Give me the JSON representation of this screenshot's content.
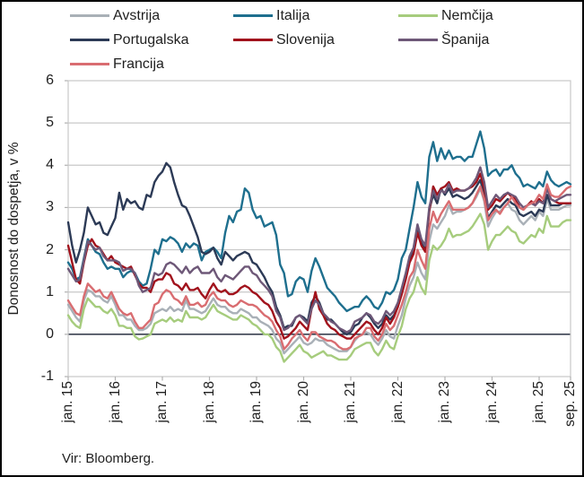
{
  "figure": {
    "source_label": "Vir: Bloomberg."
  },
  "chart_data": {
    "type": "line",
    "title": "",
    "ylabel": "Donosnost do dospetja, v %",
    "xlabel": "",
    "ylim": [
      -1,
      6
    ],
    "y_ticks": [
      6,
      5,
      4,
      3,
      2,
      1,
      0,
      -1
    ],
    "x_unit": "monthly, jan. 2015 - sep. 2025",
    "x_tick_labels": [
      "jan. 15",
      "jan. 16",
      "jan. 17",
      "jan. 18",
      "jan. 19",
      "jan. 20",
      "jan. 21",
      "jan. 22",
      "jan. 23",
      "jan. 24",
      "jan. 25",
      "sep. 25"
    ],
    "x_tick_indices": [
      0,
      12,
      24,
      36,
      48,
      60,
      72,
      84,
      96,
      108,
      120,
      128
    ],
    "grid": true,
    "zero_line": true,
    "legend_position": "top",
    "colors": {
      "grid": "#c8c8c8",
      "zero_line": "#3a4150",
      "axis_tick": "#b0b0b0",
      "text": "#1f1f1f"
    },
    "series": [
      {
        "name": "Avstrija",
        "color": "#a9b0b7",
        "values": [
          0.7,
          0.55,
          0.4,
          0.3,
          0.8,
          1.05,
          1.0,
          0.9,
          0.9,
          0.8,
          0.75,
          0.9,
          0.7,
          0.45,
          0.45,
          0.35,
          0.35,
          0.2,
          0.1,
          0.1,
          0.15,
          0.25,
          0.5,
          0.55,
          0.6,
          0.55,
          0.65,
          0.55,
          0.6,
          0.55,
          0.8,
          0.6,
          0.6,
          0.55,
          0.5,
          0.55,
          0.7,
          0.85,
          0.7,
          0.65,
          0.65,
          0.55,
          0.5,
          0.5,
          0.6,
          0.55,
          0.5,
          0.4,
          0.4,
          0.3,
          0.25,
          0.2,
          0.1,
          -0.1,
          -0.2,
          -0.45,
          -0.35,
          -0.25,
          -0.15,
          -0.05,
          -0.2,
          -0.25,
          -0.2,
          -0.1,
          -0.15,
          -0.15,
          -0.25,
          -0.3,
          -0.35,
          -0.4,
          -0.4,
          -0.4,
          -0.3,
          -0.15,
          -0.05,
          0.0,
          0.05,
          0.0,
          -0.15,
          -0.25,
          -0.1,
          0.1,
          -0.05,
          -0.1,
          0.2,
          0.45,
          0.85,
          1.15,
          1.35,
          1.7,
          1.45,
          1.3,
          2.2,
          2.6,
          2.5,
          2.65,
          2.8,
          3.05,
          2.85,
          2.9,
          2.9,
          2.95,
          3.0,
          3.1,
          3.25,
          3.45,
          3.15,
          2.55,
          2.75,
          2.9,
          2.9,
          3.0,
          3.1,
          2.95,
          2.9,
          2.7,
          2.6,
          2.7,
          2.8,
          2.7,
          2.9,
          2.8,
          3.2,
          2.95,
          2.95,
          2.95,
          3.0,
          3.05,
          3.05
        ]
      },
      {
        "name": "Italija",
        "color": "#1e6f8e",
        "values": [
          1.7,
          1.55,
          1.3,
          1.35,
          1.8,
          2.25,
          2.1,
          1.95,
          1.9,
          1.7,
          1.55,
          1.6,
          1.55,
          1.55,
          1.35,
          1.45,
          1.5,
          1.45,
          1.25,
          1.15,
          1.2,
          1.55,
          2.0,
          1.9,
          2.25,
          2.2,
          2.3,
          2.25,
          2.15,
          1.95,
          2.15,
          2.05,
          2.15,
          2.1,
          1.75,
          1.95,
          2.0,
          2.05,
          1.95,
          1.8,
          2.4,
          2.8,
          2.65,
          2.9,
          2.95,
          3.45,
          3.35,
          2.95,
          2.75,
          2.8,
          2.55,
          2.6,
          2.65,
          2.35,
          1.65,
          1.45,
          0.9,
          0.95,
          1.25,
          1.35,
          1.3,
          1.0,
          1.5,
          1.8,
          1.6,
          1.35,
          1.1,
          1.0,
          0.9,
          0.75,
          0.65,
          0.55,
          0.6,
          0.65,
          0.65,
          0.8,
          0.9,
          0.8,
          0.65,
          0.6,
          0.75,
          1.0,
          0.95,
          1.05,
          1.3,
          1.8,
          2.0,
          2.5,
          3.0,
          3.6,
          3.25,
          3.1,
          4.2,
          4.55,
          4.1,
          4.4,
          4.15,
          4.35,
          4.15,
          4.2,
          4.2,
          4.1,
          4.2,
          4.2,
          4.5,
          4.8,
          4.4,
          3.75,
          3.85,
          3.9,
          3.75,
          3.9,
          3.9,
          4.0,
          3.8,
          3.7,
          3.5,
          3.55,
          3.5,
          3.45,
          3.6,
          3.5,
          3.85,
          3.65,
          3.55,
          3.5,
          3.55,
          3.6,
          3.55
        ]
      },
      {
        "name": "Nemčija",
        "color": "#a6cc7d",
        "values": [
          0.45,
          0.3,
          0.2,
          0.15,
          0.6,
          0.85,
          0.75,
          0.65,
          0.65,
          0.55,
          0.5,
          0.6,
          0.45,
          0.2,
          0.2,
          0.15,
          0.15,
          -0.05,
          -0.12,
          -0.1,
          -0.05,
          0.0,
          0.25,
          0.3,
          0.35,
          0.3,
          0.4,
          0.3,
          0.35,
          0.3,
          0.55,
          0.4,
          0.4,
          0.4,
          0.35,
          0.4,
          0.55,
          0.7,
          0.55,
          0.5,
          0.45,
          0.4,
          0.35,
          0.35,
          0.45,
          0.4,
          0.35,
          0.25,
          0.2,
          0.1,
          0.0,
          0.0,
          -0.1,
          -0.3,
          -0.4,
          -0.65,
          -0.55,
          -0.45,
          -0.35,
          -0.25,
          -0.4,
          -0.45,
          -0.55,
          -0.5,
          -0.45,
          -0.4,
          -0.5,
          -0.5,
          -0.55,
          -0.6,
          -0.6,
          -0.6,
          -0.5,
          -0.35,
          -0.3,
          -0.25,
          -0.2,
          -0.2,
          -0.4,
          -0.5,
          -0.35,
          -0.15,
          -0.3,
          -0.35,
          -0.05,
          0.2,
          0.6,
          0.85,
          1.0,
          1.35,
          1.1,
          0.95,
          1.75,
          2.1,
          2.0,
          2.1,
          2.25,
          2.5,
          2.3,
          2.35,
          2.35,
          2.4,
          2.45,
          2.55,
          2.7,
          2.85,
          2.6,
          2.0,
          2.2,
          2.35,
          2.35,
          2.45,
          2.55,
          2.45,
          2.4,
          2.2,
          2.15,
          2.25,
          2.35,
          2.3,
          2.5,
          2.4,
          2.8,
          2.55,
          2.55,
          2.55,
          2.65,
          2.7,
          2.7
        ]
      },
      {
        "name": "Portugalska",
        "color": "#2c3a56",
        "values": [
          2.65,
          2.1,
          1.7,
          2.0,
          2.4,
          3.0,
          2.8,
          2.6,
          2.65,
          2.4,
          2.35,
          2.55,
          2.75,
          3.35,
          2.95,
          3.2,
          3.1,
          3.15,
          3.0,
          2.95,
          3.3,
          3.25,
          3.6,
          3.75,
          3.85,
          4.05,
          3.95,
          3.6,
          3.3,
          3.05,
          3.0,
          2.8,
          2.55,
          2.3,
          1.95,
          1.9,
          1.95,
          2.05,
          1.8,
          1.65,
          1.95,
          1.85,
          1.75,
          1.85,
          1.9,
          1.95,
          1.9,
          1.7,
          1.65,
          1.5,
          1.35,
          1.15,
          1.0,
          0.65,
          0.45,
          0.15,
          0.2,
          0.2,
          0.4,
          0.45,
          0.4,
          0.3,
          0.75,
          0.9,
          0.75,
          0.5,
          0.35,
          0.35,
          0.25,
          0.15,
          0.05,
          0.0,
          0.05,
          0.2,
          0.25,
          0.4,
          0.5,
          0.4,
          0.25,
          0.15,
          0.25,
          0.45,
          0.35,
          0.45,
          0.65,
          1.0,
          1.35,
          1.8,
          2.0,
          2.45,
          2.15,
          2.0,
          2.95,
          3.3,
          3.1,
          3.45,
          3.3,
          3.45,
          3.25,
          3.3,
          3.25,
          3.2,
          3.25,
          3.35,
          3.5,
          3.65,
          3.3,
          2.75,
          2.9,
          3.05,
          3.0,
          3.1,
          3.2,
          3.1,
          3.05,
          2.85,
          2.8,
          2.85,
          2.9,
          2.8,
          2.95,
          2.9,
          3.3,
          3.05,
          3.05,
          3.05,
          3.1,
          3.1,
          3.1
        ]
      },
      {
        "name": "Slovenija",
        "color": "#a1121c",
        "values": [
          2.1,
          1.7,
          1.3,
          1.2,
          1.7,
          2.1,
          2.25,
          2.1,
          2.05,
          1.9,
          1.75,
          1.85,
          1.7,
          1.65,
          1.6,
          1.55,
          1.6,
          1.4,
          1.2,
          1.1,
          1.1,
          1.0,
          1.25,
          1.3,
          1.3,
          1.45,
          1.4,
          1.2,
          1.15,
          1.05,
          1.2,
          1.05,
          1.05,
          1.1,
          0.95,
          0.85,
          1.05,
          1.2,
          1.05,
          1.0,
          1.05,
          0.95,
          0.95,
          1.0,
          1.1,
          1.15,
          1.1,
          1.0,
          0.95,
          0.85,
          0.75,
          0.7,
          0.55,
          0.3,
          0.15,
          -0.1,
          -0.05,
          0.05,
          0.15,
          0.3,
          0.2,
          0.1,
          0.6,
          1.0,
          0.6,
          0.45,
          0.25,
          0.15,
          0.1,
          0.0,
          -0.05,
          -0.1,
          -0.1,
          0.0,
          0.1,
          0.2,
          0.3,
          0.25,
          0.1,
          0.0,
          0.15,
          0.4,
          0.25,
          0.4,
          0.65,
          0.95,
          1.3,
          1.7,
          1.9,
          2.4,
          2.1,
          1.95,
          2.9,
          3.5,
          3.3,
          3.45,
          3.5,
          3.6,
          3.4,
          3.45,
          3.4,
          3.4,
          3.45,
          3.5,
          3.6,
          3.8,
          3.45,
          2.95,
          3.05,
          3.2,
          3.15,
          3.25,
          3.35,
          3.25,
          3.2,
          3.0,
          2.95,
          3.05,
          3.15,
          3.05,
          3.2,
          3.1,
          3.45,
          3.2,
          3.15,
          3.1,
          3.1,
          3.1,
          3.1
        ]
      },
      {
        "name": "Španija",
        "color": "#6e5878",
        "values": [
          1.55,
          1.4,
          1.25,
          1.3,
          1.75,
          2.2,
          2.1,
          2.0,
          2.05,
          1.85,
          1.75,
          1.75,
          1.75,
          1.7,
          1.5,
          1.55,
          1.55,
          1.45,
          1.15,
          1.0,
          1.05,
          1.1,
          1.45,
          1.4,
          1.45,
          1.65,
          1.7,
          1.65,
          1.55,
          1.45,
          1.6,
          1.45,
          1.55,
          1.6,
          1.45,
          1.45,
          1.45,
          1.55,
          1.35,
          1.25,
          1.4,
          1.35,
          1.3,
          1.4,
          1.5,
          1.6,
          1.6,
          1.45,
          1.4,
          1.25,
          1.15,
          1.05,
          0.9,
          0.55,
          0.4,
          0.1,
          0.15,
          0.25,
          0.4,
          0.45,
          0.35,
          0.25,
          0.6,
          0.8,
          0.7,
          0.5,
          0.4,
          0.3,
          0.25,
          0.15,
          0.1,
          0.05,
          0.1,
          0.3,
          0.35,
          0.4,
          0.5,
          0.45,
          0.3,
          0.25,
          0.35,
          0.55,
          0.45,
          0.55,
          0.75,
          1.1,
          1.45,
          1.85,
          2.05,
          2.6,
          2.25,
          2.1,
          3.0,
          3.4,
          3.2,
          3.4,
          3.35,
          3.55,
          3.35,
          3.4,
          3.4,
          3.4,
          3.45,
          3.55,
          3.7,
          3.95,
          3.6,
          3.0,
          3.15,
          3.3,
          3.2,
          3.3,
          3.35,
          3.3,
          3.25,
          3.1,
          3.0,
          3.05,
          3.1,
          3.05,
          3.15,
          3.1,
          3.45,
          3.2,
          3.15,
          3.2,
          3.25,
          3.3,
          3.3
        ]
      },
      {
        "name": "Francija",
        "color": "#d96d71",
        "values": [
          0.8,
          0.65,
          0.5,
          0.45,
          0.9,
          1.2,
          1.1,
          1.0,
          1.05,
          0.9,
          0.85,
          1.0,
          0.8,
          0.6,
          0.5,
          0.45,
          0.5,
          0.3,
          0.15,
          0.15,
          0.25,
          0.35,
          0.7,
          0.75,
          0.95,
          1.05,
          1.0,
          0.85,
          0.8,
          0.7,
          0.9,
          0.7,
          0.7,
          0.75,
          0.65,
          0.7,
          0.9,
          1.0,
          0.85,
          0.8,
          0.8,
          0.7,
          0.65,
          0.7,
          0.8,
          0.75,
          0.7,
          0.7,
          0.65,
          0.55,
          0.45,
          0.4,
          0.3,
          0.1,
          -0.05,
          -0.35,
          -0.25,
          -0.1,
          0.0,
          0.1,
          -0.05,
          -0.15,
          0.05,
          0.05,
          -0.05,
          -0.1,
          -0.15,
          -0.15,
          -0.2,
          -0.3,
          -0.35,
          -0.35,
          -0.3,
          -0.1,
          -0.05,
          0.0,
          0.15,
          0.15,
          -0.05,
          -0.15,
          0.0,
          0.25,
          0.1,
          0.2,
          0.45,
          0.7,
          1.0,
          1.35,
          1.5,
          2.0,
          1.75,
          1.55,
          2.5,
          2.9,
          2.65,
          2.85,
          3.0,
          3.15,
          2.95,
          2.95,
          2.95,
          2.95,
          3.0,
          3.1,
          3.3,
          3.5,
          3.2,
          2.7,
          2.85,
          2.95,
          2.85,
          3.0,
          3.1,
          3.25,
          3.1,
          3.0,
          2.95,
          3.05,
          3.1,
          3.15,
          3.3,
          3.2,
          3.55,
          3.3,
          3.25,
          3.25,
          3.35,
          3.45,
          3.5
        ]
      }
    ]
  }
}
